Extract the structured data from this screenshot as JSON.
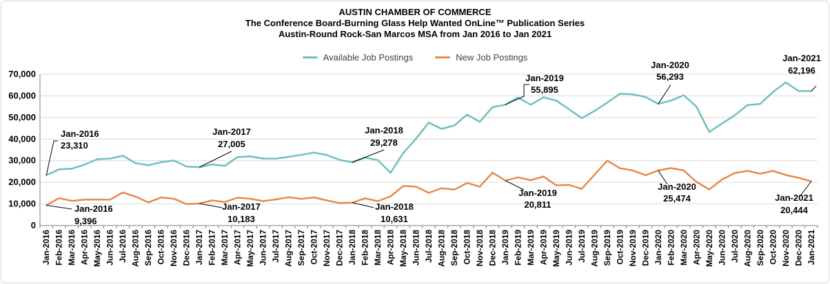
{
  "chart_data": {
    "type": "line",
    "title": "AUSTIN CHAMBER OF COMMERCE",
    "subtitle_1": "The Conference Board-Burning Glass Help Wanted OnLine™ Publication Series",
    "subtitle_2": "Austin-Round Rock-San Marcos MSA from Jan 2016 to Jan 2021",
    "xlabel": "",
    "ylabel": "",
    "ylim": [
      0,
      70000
    ],
    "yticks": [
      0,
      10000,
      20000,
      30000,
      40000,
      50000,
      60000,
      70000
    ],
    "ytick_labels": [
      "0",
      "10,000",
      "20,000",
      "30,000",
      "40,000",
      "50,000",
      "60,000",
      "70,000"
    ],
    "grid": "horizontal",
    "legend_position": "top-center",
    "categories": [
      "Jan-2016",
      "Feb-2016",
      "Mar-2016",
      "Apr-2016",
      "May-2016",
      "Jun-2016",
      "Jul-2016",
      "Aug-2016",
      "Sep-2016",
      "Oct-2016",
      "Nov-2016",
      "Dec-2016",
      "Jan-2017",
      "Feb-2017",
      "Mar-2017",
      "Apr-2017",
      "May-2017",
      "Jun-2017",
      "Jul-2017",
      "Aug-2017",
      "Sep-2017",
      "Oct-2017",
      "Nov-2017",
      "Dec-2017",
      "Jan-2018",
      "Feb-2018",
      "Mar-2018",
      "Apr-2018",
      "May-2018",
      "Jun-2018",
      "Jul-2018",
      "Aug-2018",
      "Sep-2018",
      "Oct-2018",
      "Nov-2018",
      "Dec-2018",
      "Jan-2019",
      "Feb-2019",
      "Mar-2019",
      "Apr-2019",
      "May-2019",
      "Jun-2019",
      "Jul-2019",
      "Aug-2019",
      "Sep-2019",
      "Oct-2019",
      "Nov-2019",
      "Dec-2019",
      "Jan-2020",
      "Feb-2020",
      "Mar-2020",
      "Apr-2020",
      "May-2020",
      "Jun-2020",
      "Jul-2020",
      "Aug-2020",
      "Sep-2020",
      "Oct-2020",
      "Nov-2020",
      "Dec-2020",
      "Jan-2021"
    ],
    "series": [
      {
        "name": "Available Job Postings",
        "color": "#70bfbf",
        "values": [
          23310,
          26000,
          26300,
          28200,
          30700,
          31000,
          32300,
          28900,
          27900,
          29300,
          30100,
          27300,
          27005,
          28300,
          27600,
          31700,
          32000,
          31000,
          31000,
          31800,
          32700,
          33800,
          32600,
          30400,
          29278,
          31400,
          30300,
          24400,
          33600,
          40200,
          47700,
          44700,
          46300,
          51300,
          48000,
          54800,
          55895,
          59200,
          55900,
          59300,
          57800,
          53800,
          49700,
          53000,
          56900,
          61000,
          60700,
          59500,
          56293,
          57800,
          60300,
          55000,
          43300,
          47200,
          51000,
          55700,
          56300,
          61800,
          66200,
          62300,
          62196
        ],
        "annotations": [
          {
            "index": 0,
            "label": "Jan-2016",
            "value_label": "23,310"
          },
          {
            "index": 12,
            "label": "Jan-2017",
            "value_label": "27,005"
          },
          {
            "index": 24,
            "label": "Jan-2018",
            "value_label": "29,278"
          },
          {
            "index": 36,
            "label": "Jan-2019",
            "value_label": "55,895"
          },
          {
            "index": 48,
            "label": "Jan-2020",
            "value_label": "56,293"
          },
          {
            "index": 60,
            "label": "Jan-2021",
            "value_label": "62,196"
          }
        ]
      },
      {
        "name": "New Job Postings",
        "color": "#e8894a",
        "values": [
          9396,
          12700,
          11400,
          12000,
          12000,
          12000,
          15300,
          13400,
          10700,
          13000,
          12400,
          9900,
          10183,
          11600,
          10900,
          12900,
          12400,
          11300,
          12100,
          13100,
          12300,
          13000,
          11600,
          10400,
          10631,
          12600,
          11300,
          13500,
          18300,
          18000,
          15100,
          17300,
          16600,
          19700,
          18000,
          24500,
          20811,
          22300,
          21000,
          22700,
          18600,
          18800,
          17000,
          23500,
          30000,
          26500,
          25500,
          23300,
          25474,
          26600,
          25500,
          20200,
          16700,
          21300,
          24300,
          25300,
          24000,
          25300,
          23400,
          22100,
          20444
        ],
        "annotations": [
          {
            "index": 0,
            "label": "Jan-2016",
            "value_label": "9,396"
          },
          {
            "index": 12,
            "label": "Jan-2017",
            "value_label": "10,183"
          },
          {
            "index": 24,
            "label": "Jan-2018",
            "value_label": "10,631"
          },
          {
            "index": 36,
            "label": "Jan-2019",
            "value_label": "20,811"
          },
          {
            "index": 48,
            "label": "Jan-2020",
            "value_label": "25,474"
          },
          {
            "index": 60,
            "label": "Jan-2021",
            "value_label": "20,444"
          }
        ]
      }
    ]
  }
}
